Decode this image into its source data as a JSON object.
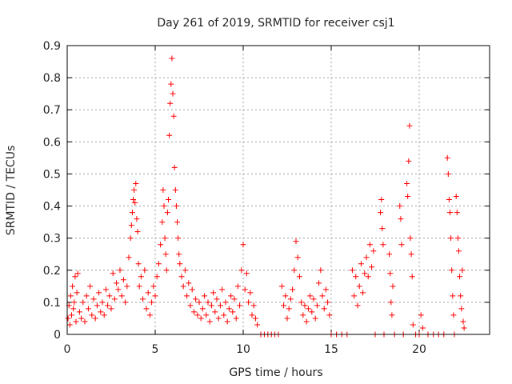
{
  "chart_data": {
    "type": "scatter",
    "title": "Day 261 of 2019, SRMTID for receiver csj1",
    "xlabel": "GPS time / hours",
    "ylabel": "SRMTID / TECUs",
    "xlim": [
      0,
      24
    ],
    "ylim": [
      0,
      0.9
    ],
    "xticks": [
      0,
      5,
      10,
      15,
      20
    ],
    "yticks": [
      0,
      0.1,
      0.2,
      0.3,
      0.4,
      0.5,
      0.6,
      0.7,
      0.8,
      0.9
    ],
    "grid": true,
    "marker": "+",
    "color": "#ff0000",
    "series": [
      {
        "name": "SRMTID",
        "points": [
          [
            0.05,
            0.05
          ],
          [
            0.1,
            0.09
          ],
          [
            0.15,
            0.03
          ],
          [
            0.2,
            0.12
          ],
          [
            0.25,
            0.06
          ],
          [
            0.3,
            0.15
          ],
          [
            0.35,
            0.08
          ],
          [
            0.4,
            0.1
          ],
          [
            0.45,
            0.18
          ],
          [
            0.5,
            0.04
          ],
          [
            0.55,
            0.13
          ],
          [
            0.6,
            0.19
          ],
          [
            0.7,
            0.07
          ],
          [
            0.8,
            0.05
          ],
          [
            0.9,
            0.1
          ],
          [
            1.0,
            0.04
          ],
          [
            1.1,
            0.12
          ],
          [
            1.2,
            0.08
          ],
          [
            1.3,
            0.15
          ],
          [
            1.4,
            0.06
          ],
          [
            1.5,
            0.11
          ],
          [
            1.6,
            0.05
          ],
          [
            1.7,
            0.09
          ],
          [
            1.8,
            0.13
          ],
          [
            1.9,
            0.07
          ],
          [
            2.0,
            0.1
          ],
          [
            2.1,
            0.06
          ],
          [
            2.2,
            0.14
          ],
          [
            2.3,
            0.09
          ],
          [
            2.4,
            0.12
          ],
          [
            2.5,
            0.08
          ],
          [
            2.6,
            0.19
          ],
          [
            2.7,
            0.11
          ],
          [
            2.8,
            0.16
          ],
          [
            2.9,
            0.14
          ],
          [
            3.0,
            0.2
          ],
          [
            3.1,
            0.12
          ],
          [
            3.2,
            0.17
          ],
          [
            3.3,
            0.1
          ],
          [
            3.4,
            0.15
          ],
          [
            3.5,
            0.24
          ],
          [
            3.6,
            0.3
          ],
          [
            3.65,
            0.34
          ],
          [
            3.7,
            0.38
          ],
          [
            3.75,
            0.42
          ],
          [
            3.8,
            0.45
          ],
          [
            3.85,
            0.41
          ],
          [
            3.9,
            0.47
          ],
          [
            3.95,
            0.36
          ],
          [
            4.0,
            0.32
          ],
          [
            4.05,
            0.22
          ],
          [
            4.1,
            0.15
          ],
          [
            4.2,
            0.18
          ],
          [
            4.3,
            0.11
          ],
          [
            4.4,
            0.2
          ],
          [
            4.5,
            0.08
          ],
          [
            4.6,
            0.13
          ],
          [
            4.7,
            0.06
          ],
          [
            4.8,
            0.1
          ],
          [
            4.9,
            0.15
          ],
          [
            5.0,
            0.12
          ],
          [
            5.1,
            0.18
          ],
          [
            5.2,
            0.22
          ],
          [
            5.3,
            0.28
          ],
          [
            5.4,
            0.35
          ],
          [
            5.45,
            0.45
          ],
          [
            5.5,
            0.4
          ],
          [
            5.55,
            0.3
          ],
          [
            5.6,
            0.25
          ],
          [
            5.65,
            0.2
          ],
          [
            5.7,
            0.38
          ],
          [
            5.75,
            0.42
          ],
          [
            5.8,
            0.62
          ],
          [
            5.85,
            0.72
          ],
          [
            5.9,
            0.78
          ],
          [
            5.95,
            0.86
          ],
          [
            6.0,
            0.75
          ],
          [
            6.05,
            0.68
          ],
          [
            6.1,
            0.52
          ],
          [
            6.15,
            0.45
          ],
          [
            6.2,
            0.4
          ],
          [
            6.25,
            0.35
          ],
          [
            6.3,
            0.3
          ],
          [
            6.35,
            0.25
          ],
          [
            6.4,
            0.22
          ],
          [
            6.5,
            0.18
          ],
          [
            6.6,
            0.15
          ],
          [
            6.7,
            0.2
          ],
          [
            6.8,
            0.12
          ],
          [
            6.9,
            0.16
          ],
          [
            7.0,
            0.09
          ],
          [
            7.1,
            0.14
          ],
          [
            7.2,
            0.07
          ],
          [
            7.3,
            0.11
          ],
          [
            7.4,
            0.06
          ],
          [
            7.5,
            0.1
          ],
          [
            7.6,
            0.05
          ],
          [
            7.7,
            0.08
          ],
          [
            7.8,
            0.12
          ],
          [
            7.9,
            0.06
          ],
          [
            8.0,
            0.1
          ],
          [
            8.1,
            0.04
          ],
          [
            8.2,
            0.09
          ],
          [
            8.3,
            0.13
          ],
          [
            8.4,
            0.07
          ],
          [
            8.5,
            0.11
          ],
          [
            8.6,
            0.05
          ],
          [
            8.7,
            0.09
          ],
          [
            8.8,
            0.14
          ],
          [
            8.9,
            0.06
          ],
          [
            9.0,
            0.1
          ],
          [
            9.1,
            0.04
          ],
          [
            9.2,
            0.08
          ],
          [
            9.3,
            0.12
          ],
          [
            9.4,
            0.07
          ],
          [
            9.5,
            0.11
          ],
          [
            9.6,
            0.05
          ],
          [
            9.7,
            0.15
          ],
          [
            9.8,
            0.09
          ],
          [
            9.9,
            0.2
          ],
          [
            10.0,
            0.28
          ],
          [
            10.1,
            0.14
          ],
          [
            10.2,
            0.19
          ],
          [
            10.3,
            0.1
          ],
          [
            10.4,
            0.13
          ],
          [
            10.5,
            0.06
          ],
          [
            10.6,
            0.09
          ],
          [
            10.7,
            0.05
          ],
          [
            10.8,
            0.03
          ],
          [
            11.0,
            0.0
          ],
          [
            11.2,
            0.0
          ],
          [
            11.4,
            0.0
          ],
          [
            11.6,
            0.0
          ],
          [
            11.8,
            0.0
          ],
          [
            12.0,
            0.0
          ],
          [
            12.2,
            0.15
          ],
          [
            12.3,
            0.09
          ],
          [
            12.4,
            0.12
          ],
          [
            12.5,
            0.05
          ],
          [
            12.6,
            0.08
          ],
          [
            12.7,
            0.11
          ],
          [
            12.8,
            0.14
          ],
          [
            12.9,
            0.2
          ],
          [
            13.0,
            0.29
          ],
          [
            13.1,
            0.24
          ],
          [
            13.2,
            0.18
          ],
          [
            13.3,
            0.1
          ],
          [
            13.4,
            0.06
          ],
          [
            13.5,
            0.09
          ],
          [
            13.6,
            0.04
          ],
          [
            13.7,
            0.08
          ],
          [
            13.8,
            0.12
          ],
          [
            13.9,
            0.07
          ],
          [
            14.0,
            0.11
          ],
          [
            14.1,
            0.05
          ],
          [
            14.2,
            0.09
          ],
          [
            14.3,
            0.16
          ],
          [
            14.4,
            0.2
          ],
          [
            14.5,
            0.12
          ],
          [
            14.6,
            0.08
          ],
          [
            14.7,
            0.14
          ],
          [
            14.8,
            0.1
          ],
          [
            14.9,
            0.06
          ],
          [
            15.0,
            0.0
          ],
          [
            15.3,
            0.0
          ],
          [
            15.6,
            0.0
          ],
          [
            15.9,
            0.0
          ],
          [
            16.2,
            0.2
          ],
          [
            16.3,
            0.12
          ],
          [
            16.4,
            0.18
          ],
          [
            16.5,
            0.09
          ],
          [
            16.6,
            0.15
          ],
          [
            16.7,
            0.22
          ],
          [
            16.8,
            0.13
          ],
          [
            16.9,
            0.19
          ],
          [
            17.0,
            0.24
          ],
          [
            17.1,
            0.18
          ],
          [
            17.2,
            0.28
          ],
          [
            17.3,
            0.21
          ],
          [
            17.4,
            0.26
          ],
          [
            17.5,
            0.0
          ],
          [
            17.8,
            0.38
          ],
          [
            17.85,
            0.42
          ],
          [
            17.9,
            0.33
          ],
          [
            17.95,
            0.28
          ],
          [
            18.0,
            0.0
          ],
          [
            18.3,
            0.25
          ],
          [
            18.35,
            0.19
          ],
          [
            18.4,
            0.1
          ],
          [
            18.45,
            0.06
          ],
          [
            18.5,
            0.15
          ],
          [
            18.6,
            0.0
          ],
          [
            18.9,
            0.4
          ],
          [
            18.95,
            0.36
          ],
          [
            19.0,
            0.28
          ],
          [
            19.1,
            0.0
          ],
          [
            19.3,
            0.47
          ],
          [
            19.35,
            0.43
          ],
          [
            19.4,
            0.54
          ],
          [
            19.45,
            0.65
          ],
          [
            19.5,
            0.3
          ],
          [
            19.55,
            0.25
          ],
          [
            19.6,
            0.18
          ],
          [
            19.65,
            0.03
          ],
          [
            19.8,
            0.0
          ],
          [
            20.0,
            0.0
          ],
          [
            20.1,
            0.06
          ],
          [
            20.2,
            0.02
          ],
          [
            20.5,
            0.0
          ],
          [
            20.8,
            0.0
          ],
          [
            21.1,
            0.0
          ],
          [
            21.4,
            0.0
          ],
          [
            21.6,
            0.55
          ],
          [
            21.65,
            0.5
          ],
          [
            21.7,
            0.42
          ],
          [
            21.75,
            0.38
          ],
          [
            21.8,
            0.3
          ],
          [
            21.85,
            0.2
          ],
          [
            21.9,
            0.12
          ],
          [
            21.95,
            0.06
          ],
          [
            22.0,
            0.0
          ],
          [
            22.1,
            0.43
          ],
          [
            22.15,
            0.38
          ],
          [
            22.2,
            0.3
          ],
          [
            22.25,
            0.26
          ],
          [
            22.3,
            0.18
          ],
          [
            22.35,
            0.12
          ],
          [
            22.4,
            0.08
          ],
          [
            22.45,
            0.2
          ],
          [
            22.5,
            0.04
          ],
          [
            22.55,
            0.02
          ]
        ]
      }
    ]
  }
}
